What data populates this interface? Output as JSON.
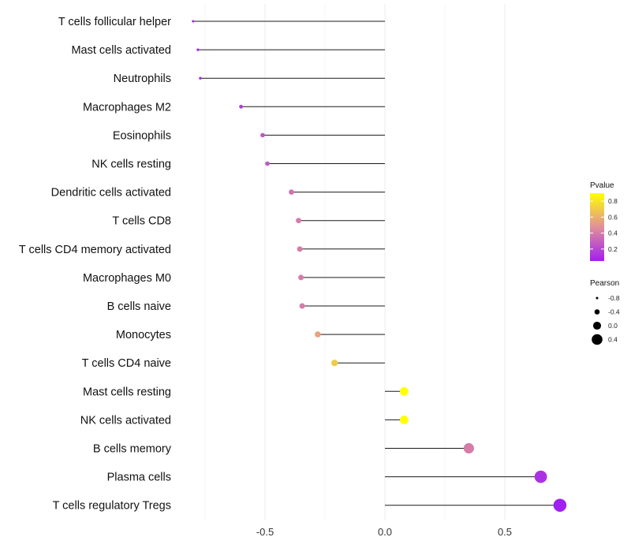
{
  "chart_data": {
    "type": "lollipop",
    "title": "",
    "xlabel": "",
    "ylabel": "",
    "xlim": [
      -0.85,
      0.75
    ],
    "xticks": [
      -0.5,
      0.0,
      0.5
    ],
    "xtick_labels": [
      "-0.5",
      "0.0",
      "0.5"
    ],
    "grid": true,
    "categories": [
      "T cells follicular helper",
      "Mast cells activated",
      "Neutrophils",
      "Macrophages M2",
      "Eosinophils",
      "NK cells resting",
      "Dendritic cells activated",
      "T cells CD8",
      "T cells CD4 memory activated",
      "Macrophages M0",
      "B cells naive",
      "Monocytes",
      "T cells CD4 naive",
      "Mast cells resting",
      "NK cells activated",
      "B cells memory",
      "Plasma cells",
      "T cells regulatory  Tregs"
    ],
    "pearson": [
      -0.8,
      -0.78,
      -0.77,
      -0.6,
      -0.51,
      -0.49,
      -0.39,
      -0.36,
      -0.355,
      -0.35,
      -0.345,
      -0.28,
      -0.21,
      0.08,
      0.08,
      0.35,
      0.65,
      0.73
    ],
    "pvalue": [
      0.05,
      0.05,
      0.05,
      0.15,
      0.25,
      0.27,
      0.36,
      0.4,
      0.4,
      0.4,
      0.4,
      0.55,
      0.7,
      0.9,
      0.9,
      0.4,
      0.12,
      0.05
    ],
    "legend": {
      "color_title": "Pvalue",
      "color_ticks": [
        0.8,
        0.6,
        0.4,
        0.2
      ],
      "color_tick_labels": [
        "0.8",
        "0.6",
        "0.4",
        "0.2"
      ],
      "color_range": [
        0.05,
        0.9
      ],
      "color_low": "#a020f0",
      "color_mid": "#e0909a",
      "color_high": "#ffff00",
      "size_title": "Pearson",
      "size_values": [
        -0.8,
        -0.4,
        0.0,
        0.4
      ],
      "size_labels": [
        "-0.8",
        "-0.4",
        "0.0",
        "0.4"
      ],
      "position": "right"
    }
  }
}
